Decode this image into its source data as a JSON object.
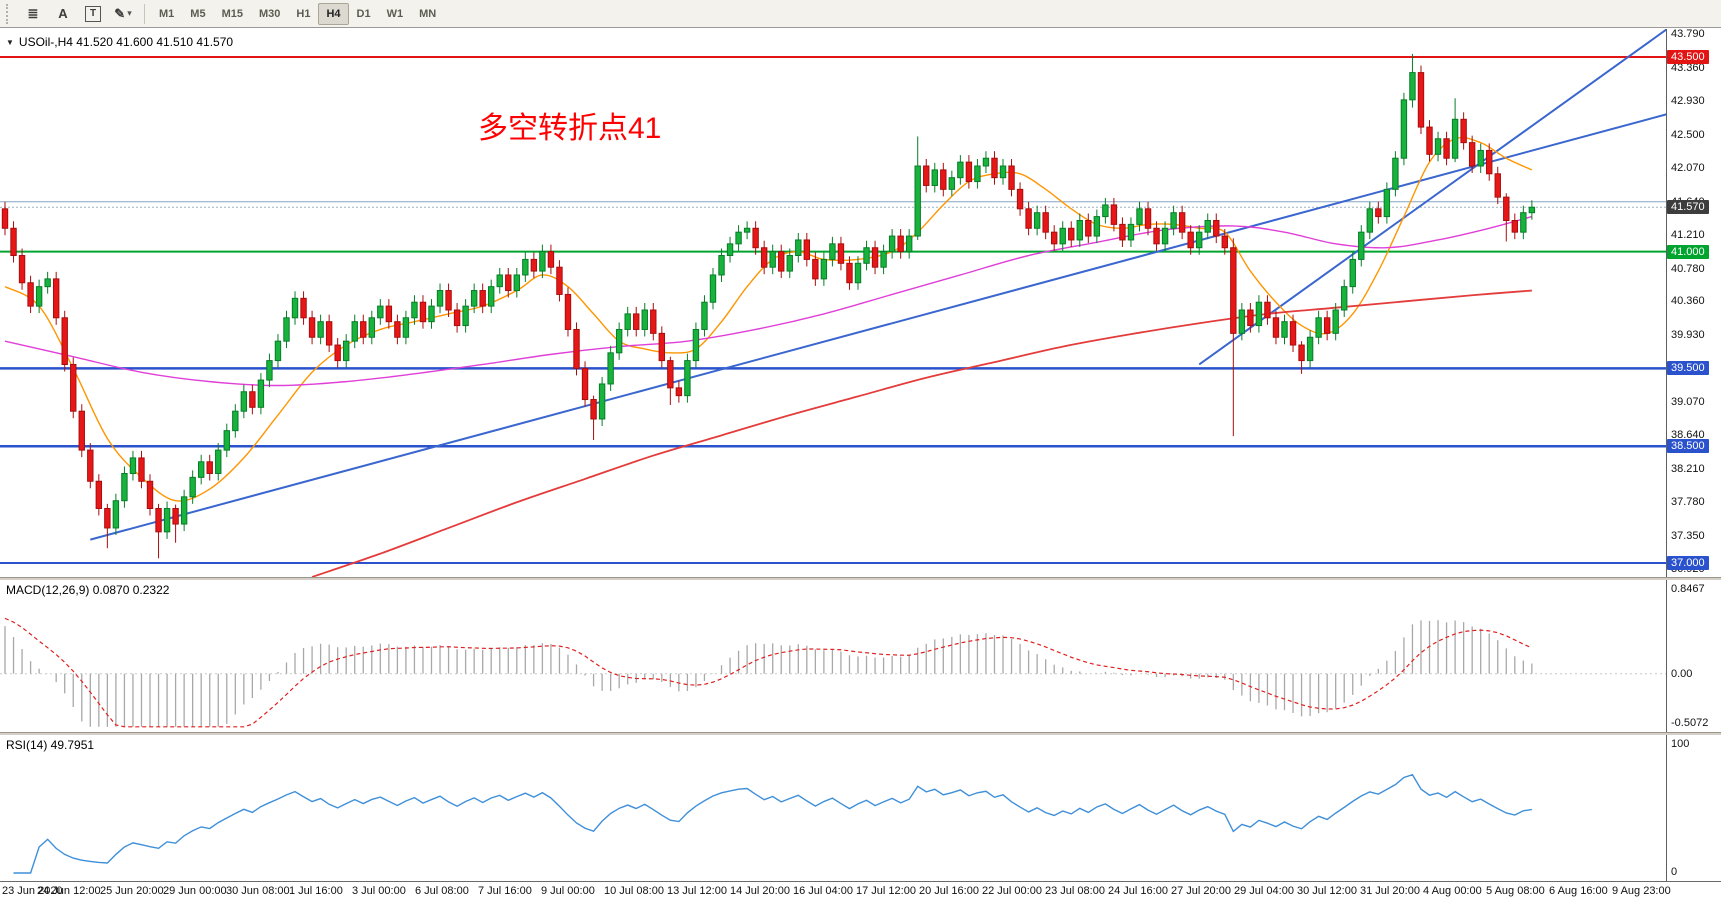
{
  "toolbar": {
    "tools": [
      {
        "name": "objects-list-icon",
        "glyph": "≣"
      },
      {
        "name": "text-tool-icon",
        "glyph": "A"
      },
      {
        "name": "label-tool-icon",
        "glyph": "T"
      },
      {
        "name": "draw-tool-icon",
        "glyph": "✎"
      }
    ],
    "draw_dropdown_glyph": "▾",
    "timeframes": [
      {
        "label": "M1",
        "active": false
      },
      {
        "label": "M5",
        "active": false
      },
      {
        "label": "M15",
        "active": false
      },
      {
        "label": "M30",
        "active": false
      },
      {
        "label": "H1",
        "active": false
      },
      {
        "label": "H4",
        "active": true
      },
      {
        "label": "D1",
        "active": false
      },
      {
        "label": "W1",
        "active": false
      },
      {
        "label": "MN",
        "active": false
      }
    ]
  },
  "chart": {
    "symbol_line": "USOil-,H4 41.520 41.600 41.510 41.570",
    "annotation": "多空转折点41"
  },
  "chart_data": {
    "type": "candlestick",
    "symbol": "USOil-",
    "timeframe": "H4",
    "ohlc_display": {
      "open": "41.520",
      "high": "41.600",
      "low": "41.510",
      "close": "41.570"
    },
    "price_axis": {
      "max": 43.86,
      "min": 36.82,
      "ticks": [
        "43.790",
        "43.360",
        "42.930",
        "42.500",
        "42.070",
        "41.640",
        "41.210",
        "40.780",
        "40.360",
        "39.930",
        "39.500",
        "39.070",
        "38.640",
        "38.210",
        "37.780",
        "37.350",
        "36.920"
      ]
    },
    "levels": [
      {
        "price": 43.5,
        "label": "43.500",
        "color": "#e21414",
        "width": 2
      },
      {
        "price": 41.64,
        "label": null,
        "color": "#86a7c5",
        "width": 1
      },
      {
        "price": 41.0,
        "label": "41.000",
        "color": "#00a42e",
        "width": 2
      },
      {
        "price": 39.5,
        "label": "39.500",
        "color": "#2a52cc",
        "width": 2.5
      },
      {
        "price": 38.5,
        "label": "38.500",
        "color": "#2a52cc",
        "width": 2.5
      },
      {
        "price": 37.0,
        "label": "37.000",
        "color": "#2a52cc",
        "width": 2
      }
    ],
    "current_price": {
      "value": 41.57,
      "label": "41.570",
      "box": "#3d3d3d",
      "line": "#9bb3c6"
    },
    "colors": {
      "up": "#18b33c",
      "down": "#e81717",
      "up_border": "#077d28",
      "down_border": "#a80d0d"
    },
    "candles": {
      "first_open": 41.55,
      "default_wick": 0.09,
      "closes": [
        41.3,
        40.95,
        40.6,
        40.3,
        40.55,
        40.65,
        40.15,
        39.55,
        38.95,
        38.45,
        38.05,
        37.7,
        37.45,
        37.8,
        38.15,
        38.35,
        38.05,
        37.7,
        37.4,
        37.7,
        37.5,
        37.85,
        38.1,
        38.3,
        38.15,
        38.45,
        38.7,
        38.95,
        39.2,
        39.0,
        39.35,
        39.6,
        39.85,
        40.15,
        40.4,
        40.15,
        39.9,
        40.1,
        39.8,
        39.6,
        39.85,
        40.1,
        39.9,
        40.15,
        40.3,
        40.1,
        39.9,
        40.15,
        40.35,
        40.1,
        40.3,
        40.5,
        40.25,
        40.05,
        40.3,
        40.5,
        40.3,
        40.55,
        40.7,
        40.5,
        40.7,
        40.9,
        40.75,
        41.0,
        40.8,
        40.45,
        40.0,
        39.5,
        39.1,
        38.85,
        39.3,
        39.7,
        40.0,
        40.2,
        40.0,
        40.25,
        39.95,
        39.6,
        39.25,
        39.15,
        39.6,
        40.0,
        40.35,
        40.7,
        40.95,
        41.1,
        41.25,
        41.3,
        41.05,
        40.8,
        41.0,
        40.75,
        40.95,
        41.15,
        40.9,
        40.65,
        40.9,
        41.1,
        40.85,
        40.6,
        40.85,
        41.05,
        40.8,
        41.0,
        41.2,
        41.0,
        41.2,
        42.1,
        41.85,
        42.05,
        41.8,
        41.95,
        42.15,
        41.9,
        42.1,
        42.2,
        41.95,
        42.1,
        41.8,
        41.55,
        41.3,
        41.5,
        41.25,
        41.1,
        41.3,
        41.15,
        41.4,
        41.2,
        41.45,
        41.6,
        41.35,
        41.15,
        41.35,
        41.55,
        41.3,
        41.1,
        41.3,
        41.5,
        41.25,
        41.05,
        41.25,
        41.4,
        41.2,
        41.05,
        39.95,
        40.25,
        40.05,
        40.35,
        40.15,
        39.9,
        40.1,
        39.8,
        39.6,
        39.9,
        40.15,
        39.95,
        40.25,
        40.55,
        40.9,
        41.25,
        41.55,
        41.45,
        41.8,
        42.2,
        42.95,
        43.3,
        42.6,
        42.25,
        42.45,
        42.2,
        42.7,
        42.4,
        42.1,
        42.3,
        42.0,
        41.7,
        41.4,
        41.25,
        41.5,
        41.57
      ],
      "wick_overrides": {
        "12": [
          0.06,
          0.26
        ],
        "18": [
          0.06,
          0.34
        ],
        "20": [
          0.05,
          0.24
        ],
        "69": [
          0.05,
          0.27
        ],
        "78": [
          0.05,
          0.22
        ],
        "107": [
          0.38,
          0.05
        ],
        "144": [
          0.12,
          1.32
        ],
        "152": [
          0.05,
          0.17
        ],
        "165": [
          0.24,
          0.1
        ],
        "170": [
          0.27,
          0.05
        ],
        "176": [
          0.05,
          0.27
        ]
      }
    },
    "moving_averages": [
      {
        "name": "ma-fast-orange",
        "color": "#ff9500",
        "width": 1.4,
        "points": [
          [
            0,
            40.55
          ],
          [
            4,
            40.3
          ],
          [
            8,
            39.5
          ],
          [
            12,
            38.6
          ],
          [
            16,
            38.1
          ],
          [
            20,
            37.8
          ],
          [
            24,
            37.95
          ],
          [
            28,
            38.35
          ],
          [
            32,
            38.9
          ],
          [
            36,
            39.45
          ],
          [
            40,
            39.8
          ],
          [
            44,
            40.0
          ],
          [
            48,
            40.1
          ],
          [
            52,
            40.2
          ],
          [
            56,
            40.3
          ],
          [
            60,
            40.5
          ],
          [
            63,
            40.7
          ],
          [
            66,
            40.55
          ],
          [
            69,
            40.2
          ],
          [
            72,
            39.85
          ],
          [
            75,
            39.75
          ],
          [
            78,
            39.7
          ],
          [
            81,
            39.75
          ],
          [
            84,
            40.1
          ],
          [
            87,
            40.55
          ],
          [
            90,
            40.9
          ],
          [
            93,
            41.0
          ],
          [
            96,
            40.9
          ],
          [
            100,
            40.9
          ],
          [
            104,
            41.0
          ],
          [
            107,
            41.25
          ],
          [
            110,
            41.6
          ],
          [
            113,
            41.9
          ],
          [
            116,
            42.0
          ],
          [
            119,
            42.0
          ],
          [
            122,
            41.8
          ],
          [
            125,
            41.55
          ],
          [
            128,
            41.35
          ],
          [
            131,
            41.3
          ],
          [
            134,
            41.35
          ],
          [
            137,
            41.35
          ],
          [
            140,
            41.3
          ],
          [
            143,
            41.25
          ],
          [
            146,
            40.75
          ],
          [
            149,
            40.35
          ],
          [
            152,
            40.05
          ],
          [
            155,
            39.95
          ],
          [
            158,
            40.2
          ],
          [
            161,
            40.75
          ],
          [
            164,
            41.45
          ],
          [
            167,
            42.15
          ],
          [
            170,
            42.45
          ],
          [
            173,
            42.4
          ],
          [
            176,
            42.2
          ],
          [
            179,
            42.05
          ]
        ]
      },
      {
        "name": "ma-mid-magenta",
        "color": "#e03fd8",
        "width": 1.4,
        "points": [
          [
            0,
            39.85
          ],
          [
            8,
            39.65
          ],
          [
            16,
            39.45
          ],
          [
            24,
            39.33
          ],
          [
            32,
            39.28
          ],
          [
            40,
            39.33
          ],
          [
            48,
            39.43
          ],
          [
            56,
            39.55
          ],
          [
            64,
            39.68
          ],
          [
            72,
            39.78
          ],
          [
            80,
            39.85
          ],
          [
            88,
            40.0
          ],
          [
            96,
            40.2
          ],
          [
            104,
            40.45
          ],
          [
            112,
            40.7
          ],
          [
            120,
            40.95
          ],
          [
            128,
            41.12
          ],
          [
            136,
            41.28
          ],
          [
            144,
            41.33
          ],
          [
            150,
            41.25
          ],
          [
            156,
            41.1
          ],
          [
            162,
            41.05
          ],
          [
            168,
            41.15
          ],
          [
            174,
            41.3
          ],
          [
            179,
            41.45
          ]
        ]
      },
      {
        "name": "ma-slow-red",
        "color": "#e43b3b",
        "width": 1.8,
        "points": [
          [
            36,
            36.82
          ],
          [
            44,
            37.12
          ],
          [
            52,
            37.45
          ],
          [
            60,
            37.78
          ],
          [
            68,
            38.08
          ],
          [
            76,
            38.38
          ],
          [
            84,
            38.64
          ],
          [
            92,
            38.9
          ],
          [
            100,
            39.14
          ],
          [
            108,
            39.38
          ],
          [
            116,
            39.58
          ],
          [
            124,
            39.78
          ],
          [
            132,
            39.94
          ],
          [
            140,
            40.08
          ],
          [
            148,
            40.2
          ],
          [
            156,
            40.28
          ],
          [
            164,
            40.36
          ],
          [
            172,
            40.44
          ],
          [
            179,
            40.5
          ]
        ]
      }
    ],
    "trendlines": [
      {
        "from": [
          10,
          37.3
        ],
        "to": [
          196,
          42.8
        ],
        "color": "#3a66cf",
        "width": 2
      },
      {
        "from": [
          140,
          39.55
        ],
        "to": [
          196,
          43.95
        ],
        "color": "#3a66cf",
        "width": 2
      }
    ],
    "indicators": {
      "macd": {
        "label": "MACD(12,26,9) 0.0870 0.2322",
        "fast": 12,
        "slow": 26,
        "signal_period": 9,
        "seed_fast": 41.95,
        "seed_slow": 41.4,
        "seed_signal": 0.55,
        "clamp_max": 0.85,
        "clamp_min": -0.51,
        "scale_max": 0.9,
        "scale_min": -0.56,
        "axis": {
          "top": "0.8467",
          "zero": "0.00",
          "bottom": "-0.5072"
        },
        "hist_color": "#a8a8a8",
        "signal_color": "#e02020"
      },
      "rsi": {
        "label": "RSI(14) 49.7951",
        "period": 14,
        "axis_top": "100",
        "axis_bottom": "0",
        "color": "#3f8fd9"
      }
    },
    "time_labels": [
      "23 Jun 2020",
      "24 Jun 12:00",
      "25 Jun 20:00",
      "29 Jun 00:00",
      "30 Jun 08:00",
      "1 Jul 16:00",
      "3 Jul 00:00",
      "6 Jul 08:00",
      "7 Jul 16:00",
      "9 Jul 00:00",
      "10 Jul 08:00",
      "13 Jul 12:00",
      "14 Jul 20:00",
      "16 Jul 04:00",
      "17 Jul 12:00",
      "20 Jul 16:00",
      "22 Jul 00:00",
      "23 Jul 08:00",
      "24 Jul 16:00",
      "27 Jul 20:00",
      "29 Jul 04:00",
      "30 Jul 12:00",
      "31 Jul 20:00",
      "4 Aug 00:00",
      "5 Aug 08:00",
      "6 Aug 16:00",
      "9 Aug 23:00"
    ]
  }
}
